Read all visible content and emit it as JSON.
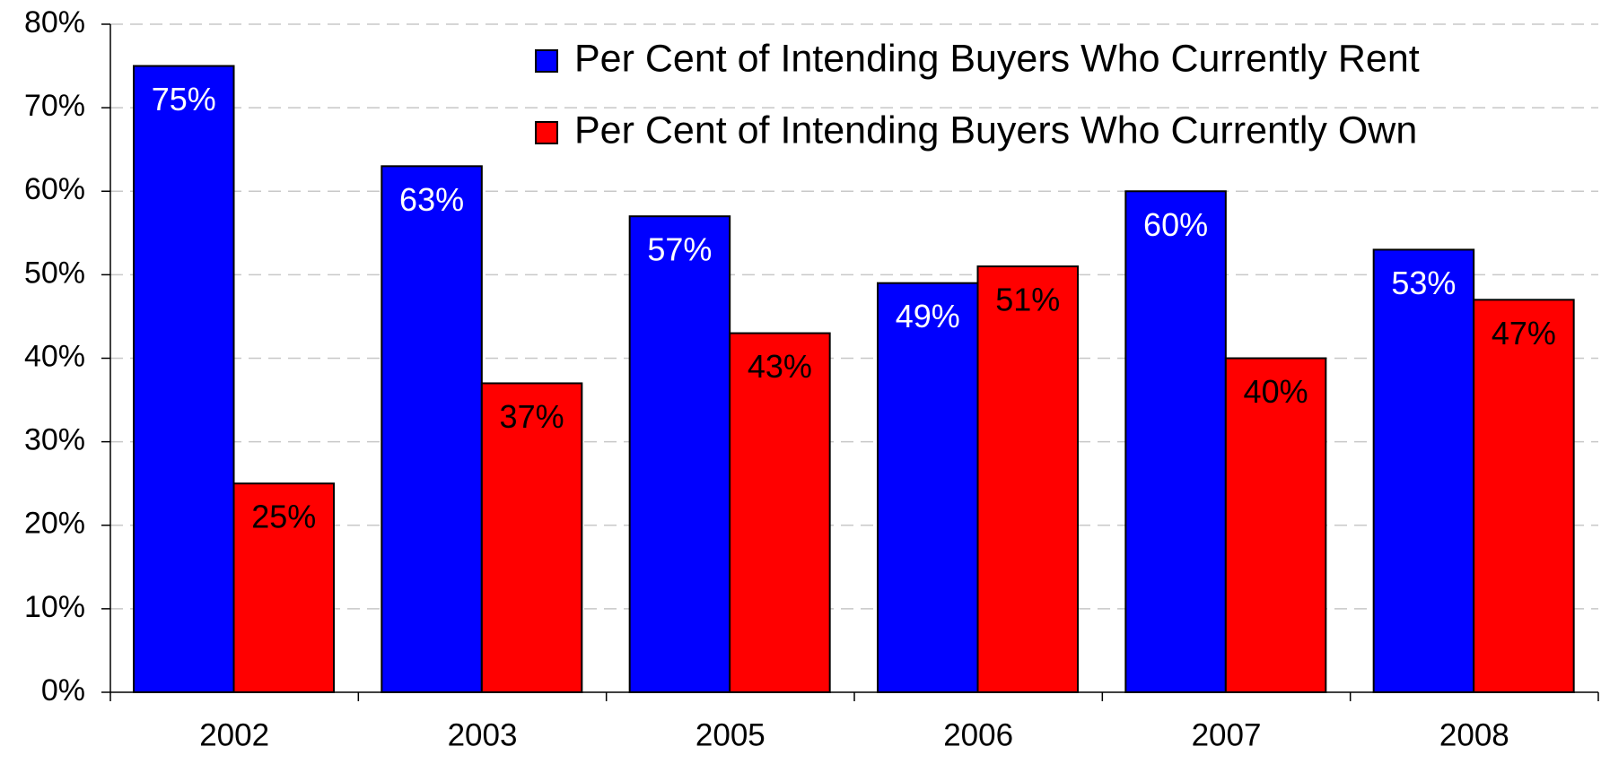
{
  "chart_data": {
    "type": "bar",
    "categories": [
      "2002",
      "2003",
      "2005",
      "2006",
      "2007",
      "2008"
    ],
    "series": [
      {
        "name": "Per Cent of Intending Buyers Who Currently Rent",
        "color": "#0000ff",
        "values": [
          75,
          63,
          57,
          49,
          60,
          53
        ],
        "value_labels": [
          "75%",
          "63%",
          "57%",
          "49%",
          "60%",
          "53%"
        ],
        "label_color": "#ffffff"
      },
      {
        "name": "Per Cent of Intending Buyers Who Currently Own",
        "color": "#ff0000",
        "values": [
          25,
          37,
          43,
          51,
          40,
          47
        ],
        "value_labels": [
          "25%",
          "37%",
          "43%",
          "51%",
          "40%",
          "47%"
        ],
        "label_color": "#000000"
      }
    ],
    "ylim": [
      0,
      80
    ],
    "yticks": [
      {
        "value": 0,
        "label": "0%"
      },
      {
        "value": 10,
        "label": "10%"
      },
      {
        "value": 20,
        "label": "20%"
      },
      {
        "value": 30,
        "label": "30%"
      },
      {
        "value": 40,
        "label": "40%"
      },
      {
        "value": 50,
        "label": "50%"
      },
      {
        "value": 60,
        "label": "60%"
      },
      {
        "value": 70,
        "label": "70%"
      },
      {
        "value": 80,
        "label": "80%"
      }
    ],
    "grid": true,
    "legend": "upper right"
  }
}
